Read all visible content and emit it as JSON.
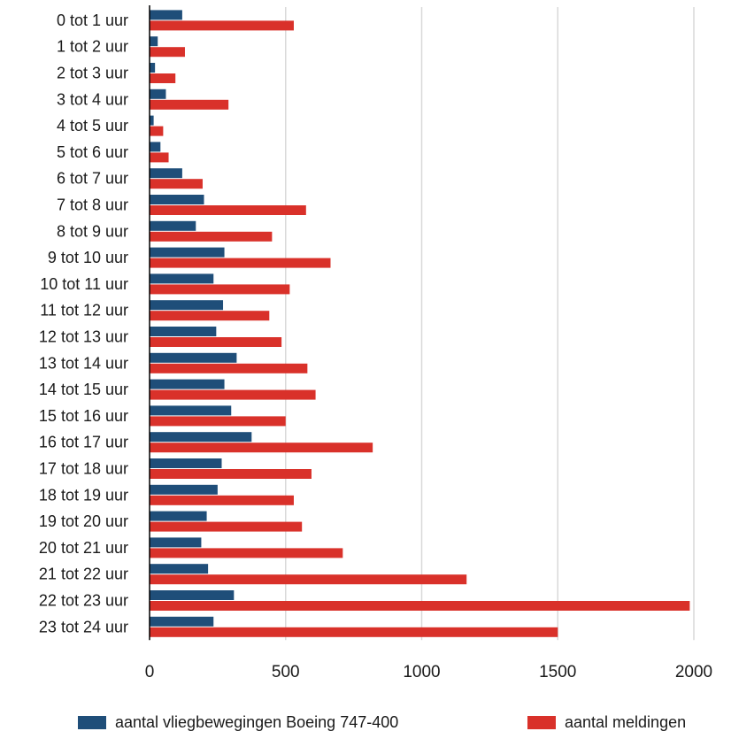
{
  "chart_data": {
    "type": "bar",
    "orientation": "horizontal",
    "title": "",
    "xlabel": "",
    "ylabel": "",
    "categories": [
      "0 tot 1 uur",
      "1 tot 2 uur",
      "2 tot 3 uur",
      "3 tot 4 uur",
      "4 tot 5 uur",
      "5 tot 6 uur",
      "6 tot 7 uur",
      "7 tot 8 uur",
      "8 tot 9 uur",
      "9 tot 10 uur",
      "10 tot 11 uur",
      "11 tot 12 uur",
      "12 tot 13 uur",
      "13 tot 14 uur",
      "14 tot 15 uur",
      "15 tot 16 uur",
      "16 tot 17 uur",
      "17 tot 18 uur",
      "18 tot 19 uur",
      "19 tot 20 uur",
      "20 tot 21 uur",
      "21 tot 22 uur",
      "22 tot 23 uur",
      "23 tot 24 uur"
    ],
    "series": [
      {
        "name": "aantal vliegbewegingen Boeing 747-400",
        "color": "#1f4e79",
        "values": [
          120,
          30,
          20,
          60,
          15,
          40,
          120,
          200,
          170,
          275,
          235,
          270,
          245,
          320,
          275,
          300,
          375,
          265,
          250,
          210,
          190,
          215,
          310,
          235
        ]
      },
      {
        "name": "aantal meldingen",
        "color": "#d9312a",
        "values": [
          530,
          130,
          95,
          290,
          50,
          70,
          195,
          575,
          450,
          665,
          515,
          440,
          485,
          580,
          610,
          500,
          820,
          595,
          530,
          560,
          710,
          1165,
          1985,
          1500
        ]
      }
    ],
    "xlim": [
      0,
      2000
    ],
    "xticks": [
      "0",
      "500",
      "1000",
      "1500",
      "2000"
    ],
    "xtick_values": [
      0,
      500,
      1000,
      1500,
      2000
    ],
    "grid": "vertical",
    "legend": "bottom",
    "gridline_color": "#d9d9d9",
    "axis_color": "#000000"
  }
}
